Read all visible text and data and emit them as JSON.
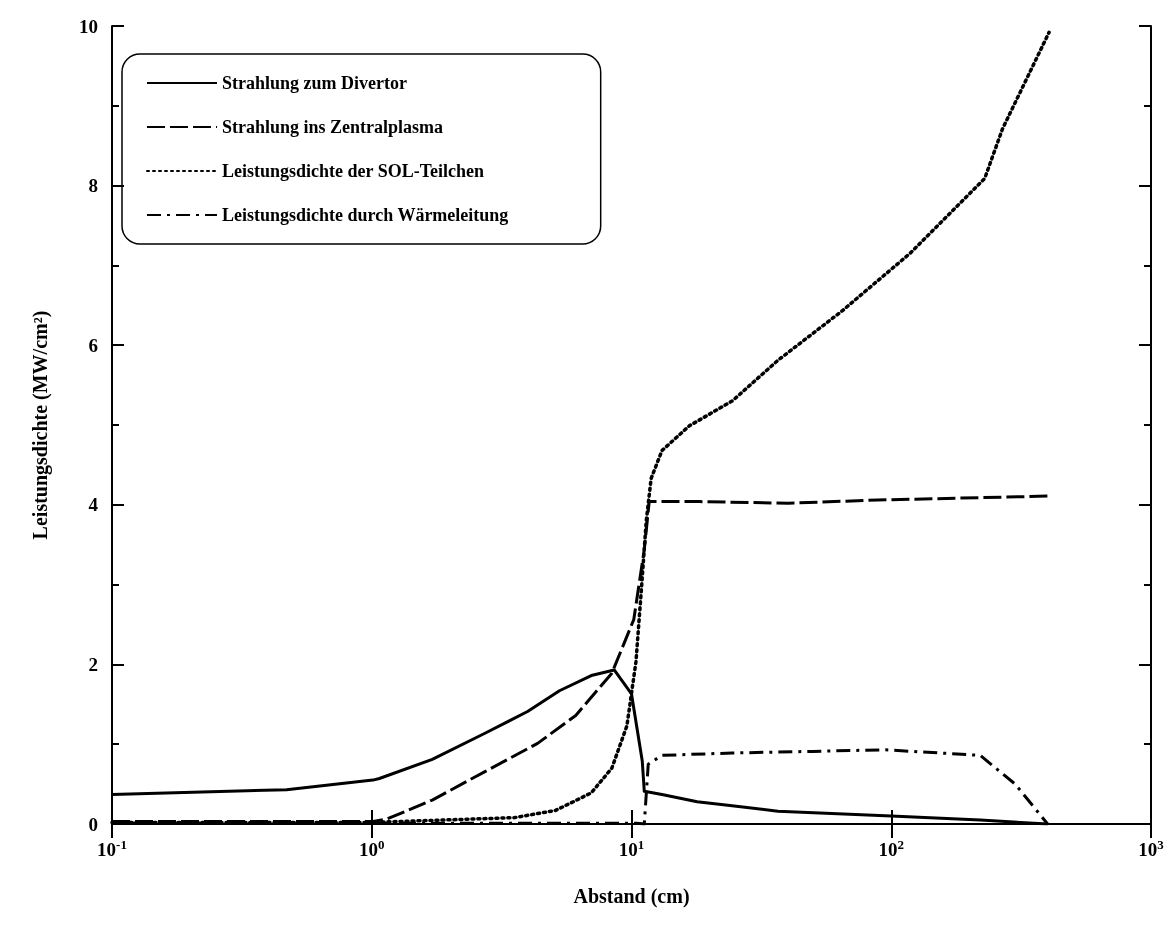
{
  "chart_data": {
    "type": "line",
    "xlabel": "Abstand (cm)",
    "ylabel": "Leistungsdichte (MW/cm²)",
    "log": "x",
    "grid": false,
    "legend": "top left",
    "marker": "none",
    "xlim": [
      0.1,
      1000
    ],
    "xticks": [
      {
        "value": 0.1,
        "label": "10$^{-1}$"
      },
      {
        "value": 1,
        "label": "10$^{0}$"
      },
      {
        "value": 10,
        "label": "10$^{1}$"
      },
      {
        "value": 100,
        "label": "10$^{2}$"
      },
      {
        "value": 1000,
        "label": "10$^{3}$"
      }
    ],
    "ylim": [
      0,
      10
    ],
    "yticks": [
      0,
      2,
      4,
      6,
      8,
      10
    ],
    "series": [
      {
        "name": "Strahlung zum Divertor",
        "color": "#000000",
        "line_style": "solid",
        "x": [
          0.1,
          0.47,
          1.01,
          1.07,
          1.71,
          2.74,
          3.98,
          5.28,
          7.0,
          8.58,
          10.0,
          11.0,
          11.2,
          13.1,
          17.9,
          24.4,
          36.6,
          100,
          220,
          400
        ],
        "values": [
          0.37,
          0.43,
          0.55,
          0.57,
          0.81,
          1.14,
          1.41,
          1.67,
          1.86,
          1.93,
          1.63,
          0.79,
          0.41,
          0.37,
          0.28,
          0.23,
          0.16,
          0.1,
          0.05,
          0
        ]
      },
      {
        "name": "Strahlung ins Zentralplasma",
        "color": "#000000",
        "line_style": "dashed",
        "x": [
          0.1,
          1.0,
          1.14,
          1.71,
          2.74,
          4.35,
          6.1,
          8.4,
          10.2,
          11.2,
          11.7,
          18.3,
          40,
          88.7,
          412
        ],
        "values": [
          0.03,
          0.03,
          0.06,
          0.3,
          0.66,
          1.01,
          1.36,
          1.89,
          2.56,
          3.44,
          4.04,
          4.04,
          4.02,
          4.06,
          4.11
        ]
      },
      {
        "name": "Leistungsdichte der SOL-Teilchen",
        "color": "#000000",
        "line_style": "dotted",
        "x": [
          0.1,
          1.0,
          3.55,
          5.1,
          7.0,
          8.4,
          9.6,
          10.4,
          10.9,
          11.4,
          11.9,
          13.1,
          16.7,
          24.4,
          36.6,
          64.7,
          118,
          229,
          268,
          405
        ],
        "values": [
          0.02,
          0.02,
          0.08,
          0.17,
          0.39,
          0.7,
          1.23,
          2.03,
          2.91,
          3.8,
          4.33,
          4.68,
          4.99,
          5.3,
          5.81,
          6.43,
          7.15,
          8.09,
          8.71,
          9.92
        ]
      },
      {
        "name": "Leistungsdichte durch Wärmeleitung",
        "color": "#000000",
        "line_style": "dashdot",
        "x": [
          0.1,
          10.5,
          11.2,
          11.6,
          13.1,
          24.4,
          50,
          95,
          220,
          300,
          400
        ],
        "values": [
          0.01,
          0.01,
          0.0,
          0.75,
          0.86,
          0.89,
          0.91,
          0.93,
          0.86,
          0.5,
          0
        ]
      }
    ]
  }
}
